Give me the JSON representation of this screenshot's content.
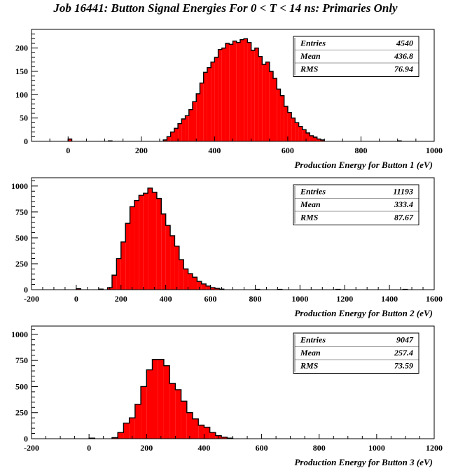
{
  "title": "Job 16441: Button Signal Energies For 0 < T < 14 ns: Primaries Only",
  "colors": {
    "fill": "#ff0000",
    "outline": "#000000",
    "background": "#ffffff"
  },
  "chart_data": [
    {
      "type": "bar",
      "xlabel": "Production Energy for Button 1 (eV)",
      "ylabel": "",
      "xlim": [
        -100,
        1000
      ],
      "ylim": [
        0,
        240
      ],
      "bin_width": 10,
      "xticks": [
        0,
        200,
        400,
        600,
        800,
        1000
      ],
      "yticks": [
        0,
        50,
        100,
        150,
        200
      ],
      "stats": {
        "entries_label": "Entries",
        "entries": "4540",
        "mean_label": "Mean",
        "mean": "436.8",
        "rms_label": "RMS",
        "rms": "76.94"
      },
      "bins": [
        [
          0,
          5
        ],
        [
          110,
          1
        ],
        [
          260,
          3
        ],
        [
          270,
          10
        ],
        [
          280,
          20
        ],
        [
          290,
          28
        ],
        [
          300,
          38
        ],
        [
          310,
          48
        ],
        [
          320,
          55
        ],
        [
          330,
          68
        ],
        [
          340,
          85
        ],
        [
          350,
          102
        ],
        [
          360,
          125
        ],
        [
          370,
          148
        ],
        [
          380,
          158
        ],
        [
          390,
          170
        ],
        [
          400,
          180
        ],
        [
          410,
          197
        ],
        [
          420,
          200
        ],
        [
          430,
          210
        ],
        [
          440,
          208
        ],
        [
          450,
          215
        ],
        [
          460,
          212
        ],
        [
          470,
          218
        ],
        [
          480,
          220
        ],
        [
          490,
          212
        ],
        [
          500,
          195
        ],
        [
          510,
          200
        ],
        [
          520,
          182
        ],
        [
          530,
          165
        ],
        [
          540,
          170
        ],
        [
          550,
          150
        ],
        [
          560,
          135
        ],
        [
          570,
          112
        ],
        [
          580,
          98
        ],
        [
          590,
          75
        ],
        [
          600,
          62
        ],
        [
          610,
          50
        ],
        [
          620,
          40
        ],
        [
          630,
          32
        ],
        [
          640,
          25
        ],
        [
          650,
          18
        ],
        [
          660,
          12
        ],
        [
          670,
          9
        ],
        [
          680,
          5
        ],
        [
          690,
          3
        ],
        [
          900,
          1
        ]
      ]
    },
    {
      "type": "bar",
      "xlabel": "Production Energy for Button 2 (eV)",
      "ylabel": "",
      "xlim": [
        -200,
        1600
      ],
      "ylim": [
        0,
        1080
      ],
      "bin_width": 20,
      "xticks": [
        -200,
        0,
        200,
        400,
        600,
        800,
        1000,
        1200,
        1400,
        1600
      ],
      "yticks": [
        0,
        250,
        500,
        750,
        1000
      ],
      "stats": {
        "entries_label": "Entries",
        "entries": "11193",
        "mean_label": "Mean",
        "mean": "333.4",
        "rms_label": "RMS",
        "rms": "87.67"
      },
      "bins": [
        [
          0,
          10
        ],
        [
          100,
          5
        ],
        [
          140,
          20
        ],
        [
          160,
          140
        ],
        [
          180,
          300
        ],
        [
          200,
          460
        ],
        [
          220,
          640
        ],
        [
          240,
          800
        ],
        [
          260,
          860
        ],
        [
          280,
          910
        ],
        [
          300,
          930
        ],
        [
          320,
          980
        ],
        [
          340,
          940
        ],
        [
          360,
          880
        ],
        [
          380,
          730
        ],
        [
          400,
          620
        ],
        [
          420,
          520
        ],
        [
          440,
          420
        ],
        [
          460,
          290
        ],
        [
          480,
          200
        ],
        [
          500,
          155
        ],
        [
          520,
          120
        ],
        [
          540,
          80
        ],
        [
          560,
          55
        ],
        [
          580,
          35
        ],
        [
          600,
          20
        ],
        [
          620,
          12
        ],
        [
          640,
          5
        ],
        [
          800,
          3
        ],
        [
          900,
          3
        ],
        [
          1160,
          3
        ],
        [
          1460,
          3
        ]
      ]
    },
    {
      "type": "bar",
      "xlabel": "Production Energy for Button 3 (eV)",
      "ylabel": "",
      "xlim": [
        -200,
        1200
      ],
      "ylim": [
        0,
        1080
      ],
      "bin_width": 20,
      "xticks": [
        -200,
        0,
        200,
        400,
        600,
        800,
        1000,
        1200
      ],
      "yticks": [
        0,
        250,
        500,
        750,
        1000
      ],
      "stats": {
        "entries_label": "Entries",
        "entries": "9047",
        "mean_label": "Mean",
        "mean": "257.4",
        "rms_label": "RMS",
        "rms": "73.59"
      },
      "bins": [
        [
          0,
          5
        ],
        [
          80,
          10
        ],
        [
          100,
          60
        ],
        [
          120,
          150
        ],
        [
          140,
          200
        ],
        [
          160,
          330
        ],
        [
          180,
          500
        ],
        [
          200,
          660
        ],
        [
          220,
          760
        ],
        [
          240,
          760
        ],
        [
          260,
          700
        ],
        [
          280,
          530
        ],
        [
          300,
          470
        ],
        [
          320,
          360
        ],
        [
          340,
          250
        ],
        [
          360,
          190
        ],
        [
          380,
          130
        ],
        [
          400,
          110
        ],
        [
          420,
          60
        ],
        [
          440,
          30
        ],
        [
          460,
          15
        ],
        [
          480,
          5
        ]
      ]
    }
  ]
}
